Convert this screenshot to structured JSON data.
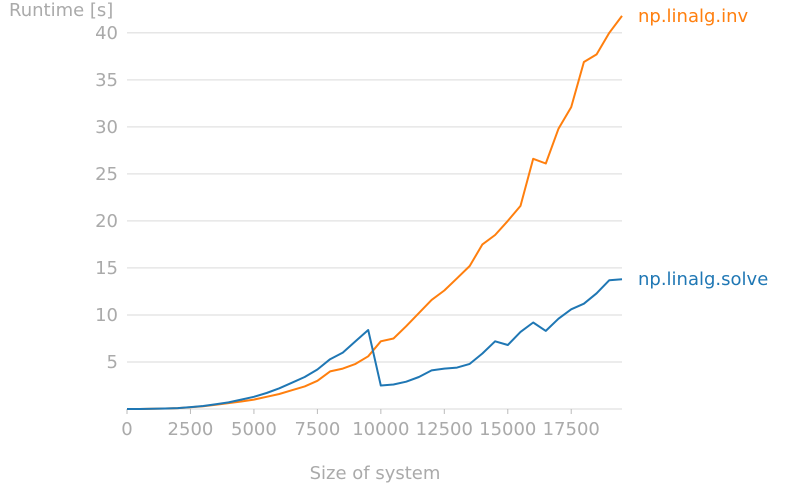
{
  "chart_data": {
    "type": "line",
    "xlabel": "Size of system",
    "ylabel": "Runtime [s]",
    "xlim": [
      0,
      19500
    ],
    "ylim": [
      0,
      42
    ],
    "xticks": [
      0,
      2500,
      5000,
      7500,
      10000,
      12500,
      15000,
      17500
    ],
    "yticks": [
      5,
      10,
      15,
      20,
      25,
      30,
      35,
      40
    ],
    "grid": "horizontal",
    "legend": "direct-labels-right",
    "x": [
      0,
      500,
      1000,
      1500,
      2000,
      2500,
      3000,
      3500,
      4000,
      4500,
      5000,
      5500,
      6000,
      6500,
      7000,
      7500,
      8000,
      8500,
      9000,
      9500,
      10000,
      10500,
      11000,
      11500,
      12000,
      12500,
      13000,
      13500,
      14000,
      14500,
      15000,
      15500,
      16000,
      16500,
      17000,
      17500,
      18000,
      18500,
      19000,
      19500
    ],
    "series": [
      {
        "name": "np.linalg.inv",
        "color": "#ff7f0e",
        "values": [
          0,
          0,
          0.02,
          0.05,
          0.1,
          0.18,
          0.3,
          0.45,
          0.63,
          0.8,
          1.0,
          1.3,
          1.6,
          2.0,
          2.4,
          3.0,
          4.0,
          4.3,
          4.8,
          5.6,
          7.2,
          7.5,
          8.8,
          10.2,
          11.6,
          12.6,
          13.9,
          15.2,
          17.5,
          18.5,
          20.0,
          21.6,
          26.6,
          26.1,
          29.8,
          32.1,
          36.9,
          37.7,
          40.0,
          41.8
        ]
      },
      {
        "name": "np.linalg.solve",
        "color": "#1f77b4",
        "values": [
          0,
          0,
          0.02,
          0.05,
          0.1,
          0.2,
          0.32,
          0.5,
          0.7,
          1.0,
          1.3,
          1.7,
          2.2,
          2.8,
          3.4,
          4.2,
          5.3,
          6.0,
          7.2,
          8.4,
          2.5,
          2.6,
          2.9,
          3.4,
          4.1,
          4.3,
          4.4,
          4.8,
          5.9,
          7.2,
          6.8,
          8.2,
          9.2,
          8.3,
          9.6,
          10.6,
          11.2,
          12.3,
          13.7,
          13.8
        ]
      }
    ]
  }
}
